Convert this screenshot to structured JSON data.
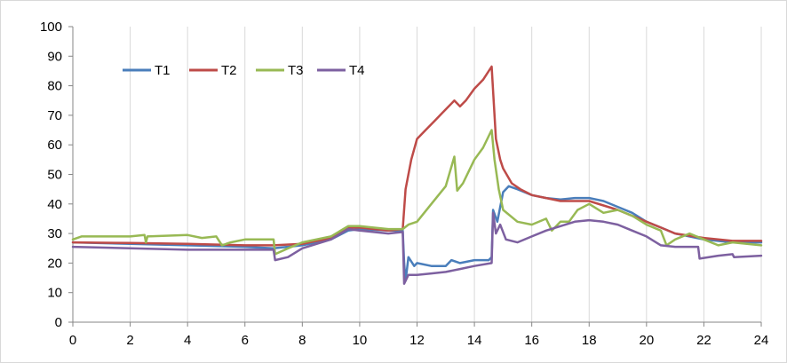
{
  "chart_data": {
    "type": "line",
    "title": "",
    "xlabel": "",
    "ylabel": "",
    "xlim": [
      0,
      24
    ],
    "ylim": [
      0,
      100
    ],
    "x_ticks": [
      "0",
      "2",
      "4",
      "6",
      "8",
      "10",
      "12",
      "14",
      "16",
      "18",
      "20",
      "22",
      "24"
    ],
    "y_ticks": [
      "0",
      "10",
      "20",
      "30",
      "40",
      "50",
      "60",
      "70",
      "80",
      "90",
      "100"
    ],
    "grid": "vertical",
    "legend_position": "top-left",
    "series": [
      {
        "name": "T1",
        "color": "#4a7ebb",
        "points": [
          [
            0,
            27
          ],
          [
            2,
            26.5
          ],
          [
            4,
            26
          ],
          [
            6,
            25.5
          ],
          [
            7,
            25
          ],
          [
            8,
            26
          ],
          [
            9,
            28
          ],
          [
            9.6,
            31
          ],
          [
            10,
            31.5
          ],
          [
            11,
            31
          ],
          [
            11.5,
            31
          ],
          [
            11.55,
            20
          ],
          [
            11.6,
            14
          ],
          [
            11.7,
            22
          ],
          [
            11.9,
            19
          ],
          [
            12,
            20
          ],
          [
            12.5,
            19
          ],
          [
            13,
            19
          ],
          [
            13.2,
            21
          ],
          [
            13.5,
            20
          ],
          [
            14,
            21
          ],
          [
            14.5,
            21
          ],
          [
            14.6,
            22
          ],
          [
            14.65,
            38
          ],
          [
            14.8,
            34
          ],
          [
            15,
            44
          ],
          [
            15.2,
            46
          ],
          [
            15.5,
            45
          ],
          [
            16,
            43
          ],
          [
            16.5,
            42
          ],
          [
            17,
            41.5
          ],
          [
            17.5,
            42
          ],
          [
            18,
            42
          ],
          [
            18.5,
            41
          ],
          [
            19,
            39
          ],
          [
            19.5,
            37
          ],
          [
            20,
            34
          ],
          [
            20.5,
            32
          ],
          [
            21,
            30
          ],
          [
            22,
            28
          ],
          [
            23,
            27
          ],
          [
            24,
            27
          ]
        ]
      },
      {
        "name": "T2",
        "color": "#be4b48",
        "points": [
          [
            0,
            27
          ],
          [
            2,
            26.8
          ],
          [
            4,
            26.5
          ],
          [
            6,
            26
          ],
          [
            7,
            26
          ],
          [
            8,
            26.5
          ],
          [
            9,
            28.5
          ],
          [
            9.6,
            32
          ],
          [
            10,
            32
          ],
          [
            11,
            31
          ],
          [
            11.5,
            31.5
          ],
          [
            11.6,
            45
          ],
          [
            11.8,
            55
          ],
          [
            12,
            62
          ],
          [
            12.3,
            65
          ],
          [
            12.6,
            68
          ],
          [
            13,
            72
          ],
          [
            13.3,
            75
          ],
          [
            13.5,
            73
          ],
          [
            13.7,
            75
          ],
          [
            14,
            79
          ],
          [
            14.3,
            82
          ],
          [
            14.6,
            86.5
          ],
          [
            14.75,
            62
          ],
          [
            14.9,
            55
          ],
          [
            15,
            52
          ],
          [
            15.3,
            47
          ],
          [
            15.6,
            45
          ],
          [
            16,
            43
          ],
          [
            16.5,
            42
          ],
          [
            17,
            41
          ],
          [
            18,
            41
          ],
          [
            19,
            38
          ],
          [
            20,
            34
          ],
          [
            20.5,
            32
          ],
          [
            21,
            30
          ],
          [
            22,
            28.5
          ],
          [
            23,
            27.5
          ],
          [
            24,
            27.5
          ]
        ]
      },
      {
        "name": "T3",
        "color": "#98b954",
        "points": [
          [
            0,
            28
          ],
          [
            0.3,
            29
          ],
          [
            2,
            29
          ],
          [
            2.5,
            29.5
          ],
          [
            2.55,
            27
          ],
          [
            2.6,
            29
          ],
          [
            4,
            29.5
          ],
          [
            4.5,
            28.5
          ],
          [
            5,
            29
          ],
          [
            5.2,
            26
          ],
          [
            5.5,
            27
          ],
          [
            6,
            28
          ],
          [
            6.5,
            28
          ],
          [
            7,
            28
          ],
          [
            7.05,
            23
          ],
          [
            7.5,
            25
          ],
          [
            8,
            27
          ],
          [
            9,
            29
          ],
          [
            9.6,
            32.5
          ],
          [
            10,
            32.5
          ],
          [
            11,
            31.5
          ],
          [
            11.5,
            31.5
          ],
          [
            11.7,
            33
          ],
          [
            12,
            34
          ],
          [
            12.5,
            40
          ],
          [
            13,
            46
          ],
          [
            13.3,
            56
          ],
          [
            13.4,
            44.5
          ],
          [
            13.6,
            47
          ],
          [
            14,
            55
          ],
          [
            14.3,
            59
          ],
          [
            14.6,
            65
          ],
          [
            14.7,
            55
          ],
          [
            14.85,
            45
          ],
          [
            15,
            38
          ],
          [
            15.5,
            34
          ],
          [
            16,
            33
          ],
          [
            16.5,
            35
          ],
          [
            16.7,
            31
          ],
          [
            17,
            34
          ],
          [
            17.3,
            34
          ],
          [
            17.6,
            38
          ],
          [
            18,
            40
          ],
          [
            18.5,
            37
          ],
          [
            19,
            38
          ],
          [
            19.5,
            36
          ],
          [
            20,
            33
          ],
          [
            20.5,
            31
          ],
          [
            20.7,
            26
          ],
          [
            21,
            28
          ],
          [
            21.5,
            30
          ],
          [
            22,
            28
          ],
          [
            22.5,
            26
          ],
          [
            23,
            27
          ],
          [
            24,
            26
          ]
        ]
      },
      {
        "name": "T4",
        "color": "#7d60a0",
        "points": [
          [
            0,
            25.5
          ],
          [
            2,
            25
          ],
          [
            4,
            24.5
          ],
          [
            6,
            24.5
          ],
          [
            7,
            24.5
          ],
          [
            7.05,
            21
          ],
          [
            7.5,
            22
          ],
          [
            8,
            25
          ],
          [
            9,
            28
          ],
          [
            9.6,
            31.5
          ],
          [
            10,
            31
          ],
          [
            11,
            30
          ],
          [
            11.5,
            30.5
          ],
          [
            11.55,
            13
          ],
          [
            11.7,
            16
          ],
          [
            12,
            16
          ],
          [
            12.5,
            16.5
          ],
          [
            13,
            17
          ],
          [
            13.5,
            18
          ],
          [
            14,
            19
          ],
          [
            14.6,
            20
          ],
          [
            14.65,
            37
          ],
          [
            14.75,
            30
          ],
          [
            14.9,
            33
          ],
          [
            15.1,
            28
          ],
          [
            15.5,
            27
          ],
          [
            16,
            29
          ],
          [
            16.5,
            31
          ],
          [
            17,
            32.5
          ],
          [
            17.5,
            34
          ],
          [
            18,
            34.5
          ],
          [
            18.5,
            34
          ],
          [
            19,
            33
          ],
          [
            19.5,
            31
          ],
          [
            20,
            29
          ],
          [
            20.5,
            26
          ],
          [
            21,
            25.5
          ],
          [
            21.8,
            25.5
          ],
          [
            21.85,
            21.5
          ],
          [
            22.5,
            22.5
          ],
          [
            23,
            23
          ],
          [
            23.05,
            22
          ],
          [
            24,
            22.5
          ]
        ]
      }
    ]
  }
}
